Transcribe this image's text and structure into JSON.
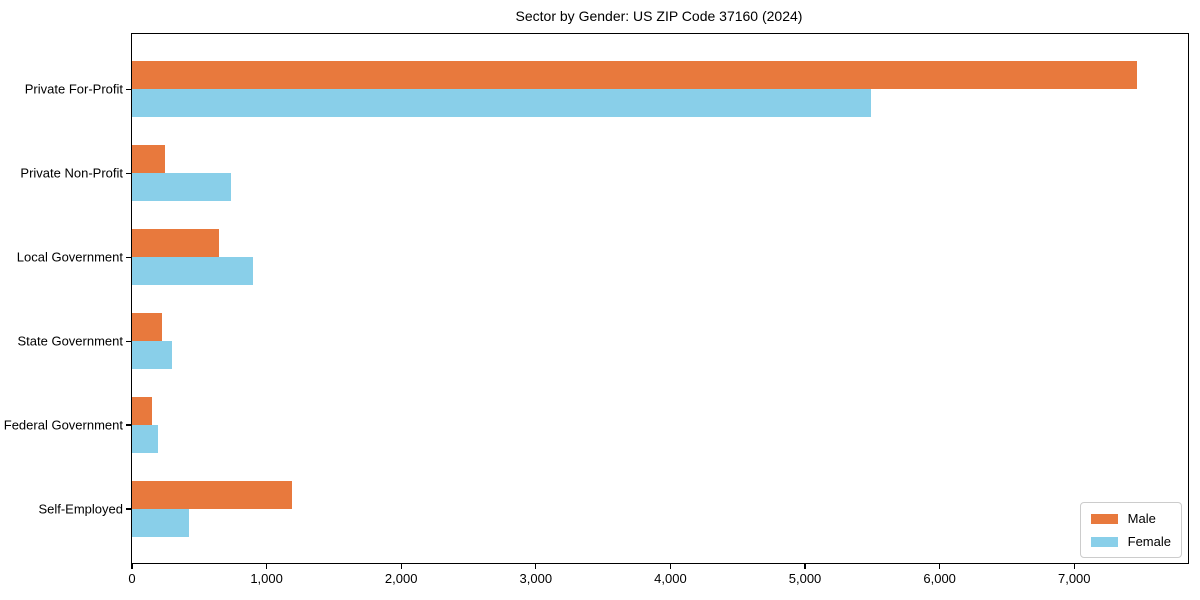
{
  "title": "Sector by Gender: US ZIP Code 37160 (2024)",
  "legend": {
    "items": [
      {
        "label": "Male",
        "color": "#E8793D"
      },
      {
        "label": "Female",
        "color": "#89CFE9"
      }
    ]
  },
  "chart_data": {
    "type": "bar",
    "orientation": "horizontal",
    "title": "Sector by Gender: US ZIP Code 37160 (2024)",
    "categories": [
      "Private For-Profit",
      "Private Non-Profit",
      "Local Government",
      "State Government",
      "Federal Government",
      "Self-Employed"
    ],
    "series": [
      {
        "name": "Male",
        "color": "#E8793D",
        "values": [
          7465,
          245,
          645,
          220,
          145,
          1190
        ]
      },
      {
        "name": "Female",
        "color": "#89CFE9",
        "values": [
          5490,
          735,
          895,
          295,
          195,
          420
        ]
      }
    ],
    "xlabel": "",
    "ylabel": "",
    "xlim": [
      0,
      7845
    ],
    "xticks": [
      0,
      1000,
      2000,
      3000,
      4000,
      5000,
      6000,
      7000
    ],
    "xtick_labels": [
      "0",
      "1,000",
      "2,000",
      "3,000",
      "4,000",
      "5,000",
      "6,000",
      "7,000"
    ],
    "grid": false,
    "frame": "box",
    "legend_position": "lower right"
  }
}
